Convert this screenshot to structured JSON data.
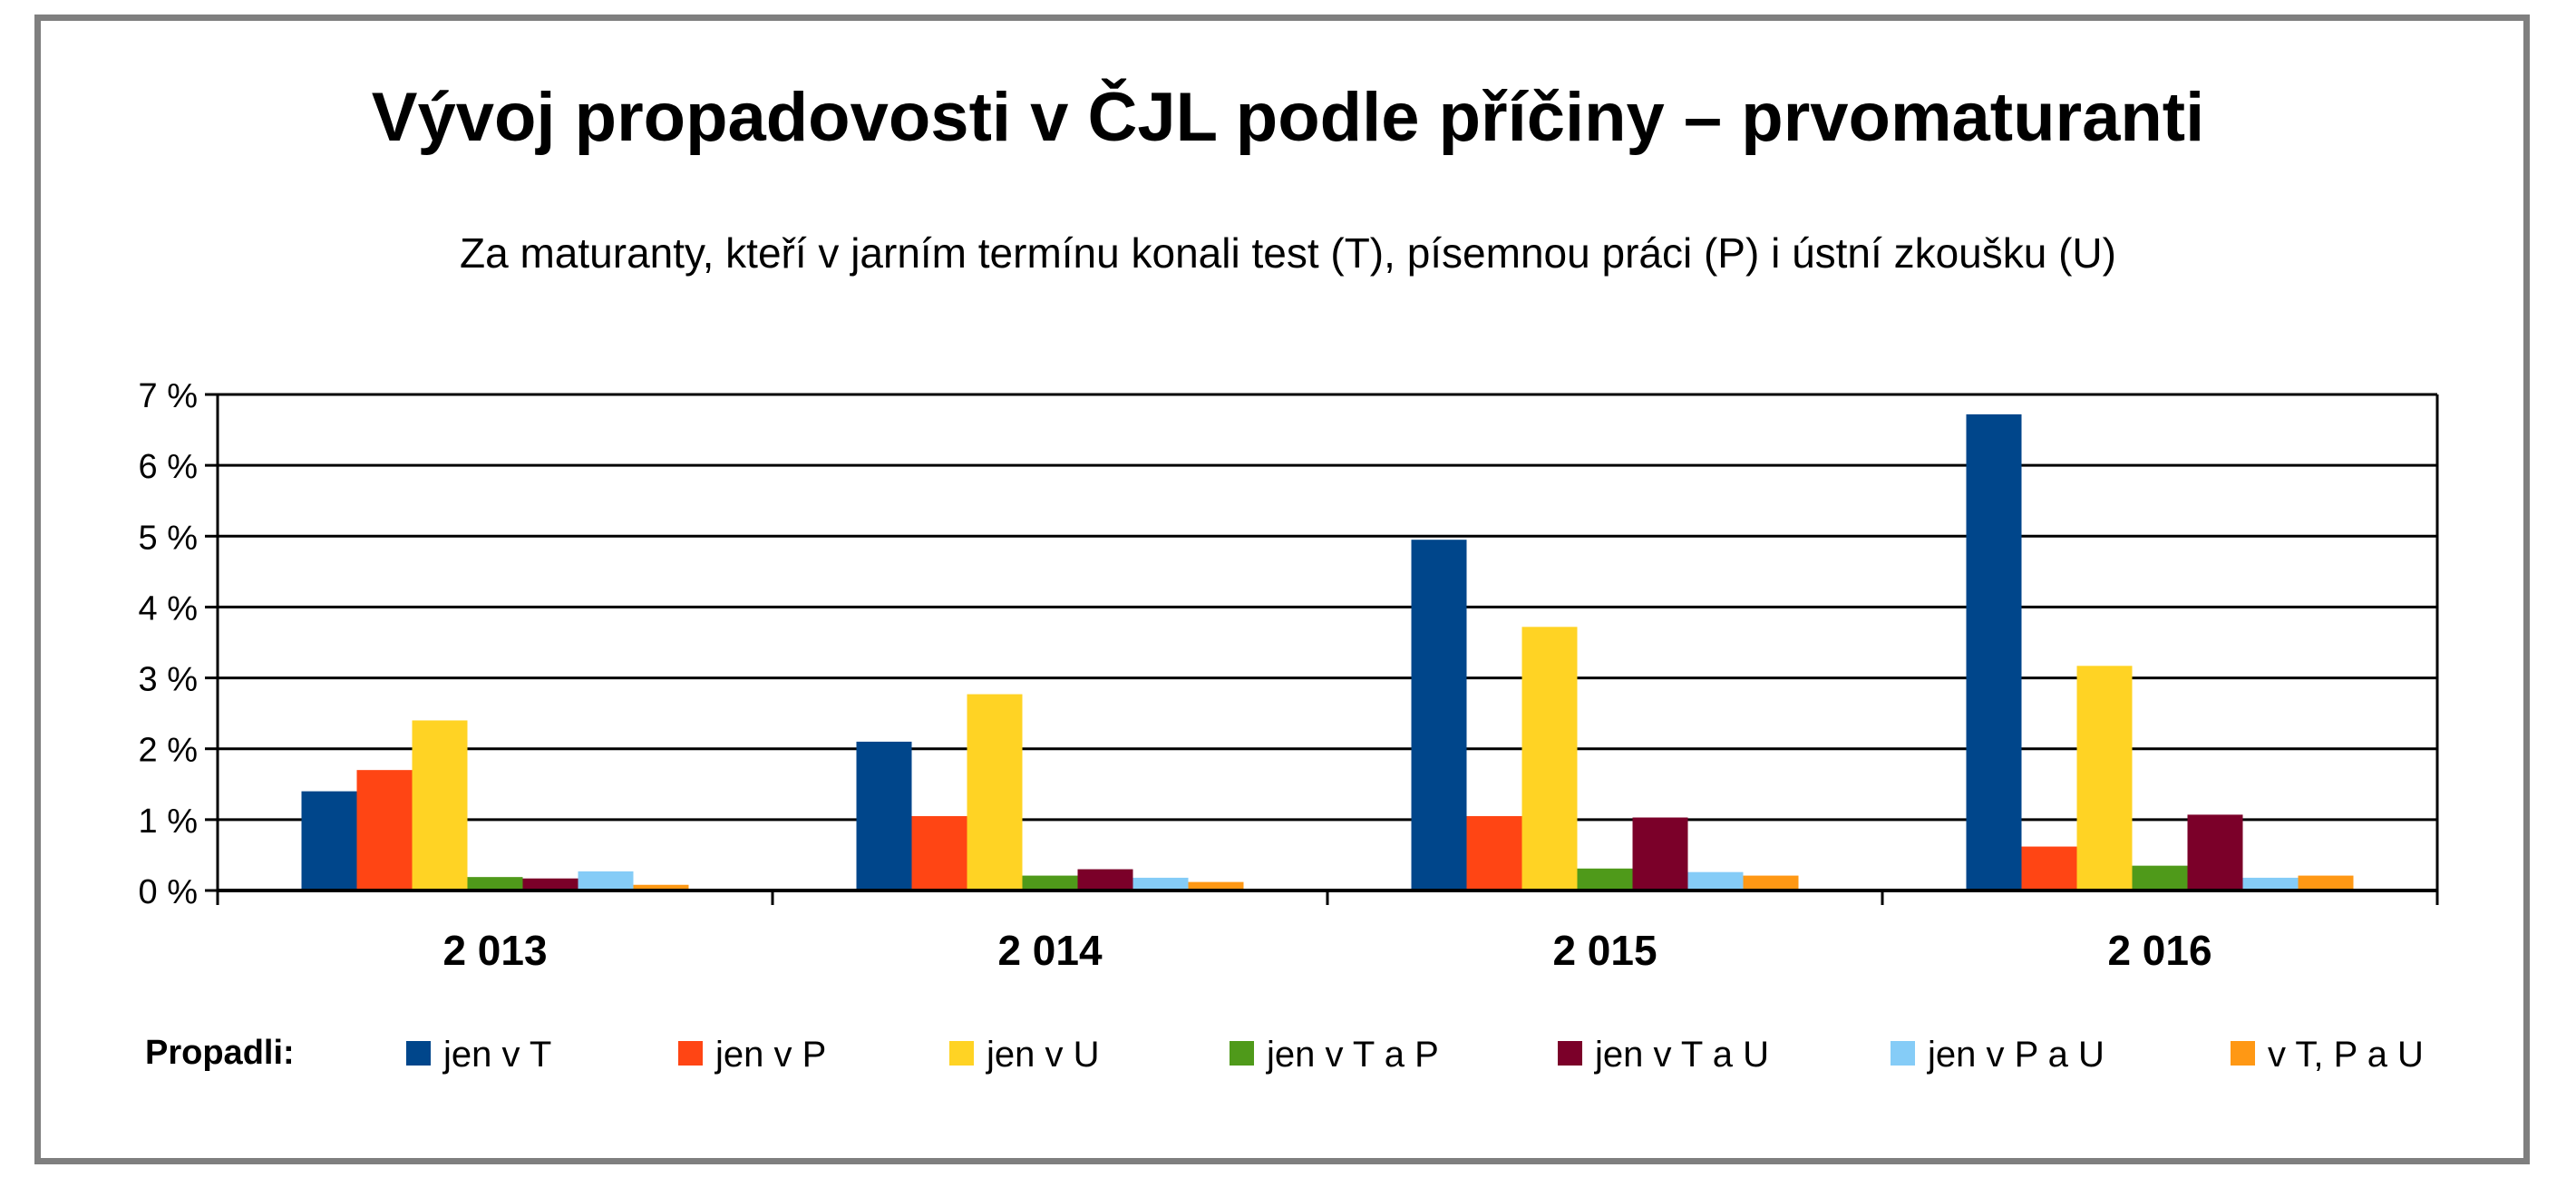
{
  "title": "Vývoj propadovosti v ČJL podle příčiny – prvomaturanti",
  "subtitle": "Za maturanty, kteří v jarním termínu konali test (T), písemnou práci (P) i ústní zkoušku (U)",
  "legend_title": "Propadli:",
  "chart_data": {
    "type": "bar",
    "categories": [
      "2 013",
      "2 014",
      "2 015",
      "2 016"
    ],
    "ylim": [
      0,
      7
    ],
    "yticks": [
      0,
      1,
      2,
      3,
      4,
      5,
      6,
      7
    ],
    "ytick_labels": [
      "0 %",
      "1 %",
      "2 %",
      "3 %",
      "4 %",
      "5 %",
      "6 %",
      "7 %"
    ],
    "grid": true,
    "legend_position": "bottom",
    "series": [
      {
        "name": "jen v T",
        "color": "#00468b",
        "values": [
          1.4,
          2.1,
          4.95,
          6.72
        ]
      },
      {
        "name": "jen v P",
        "color": "#ff4514",
        "values": [
          1.7,
          1.05,
          1.05,
          0.62
        ]
      },
      {
        "name": "jen v U",
        "color": "#ffd324",
        "values": [
          2.4,
          2.77,
          3.72,
          3.17
        ]
      },
      {
        "name": "jen v T a P",
        "color": "#4f9a1a",
        "values": [
          0.19,
          0.21,
          0.31,
          0.35
        ]
      },
      {
        "name": "jen v T a U",
        "color": "#7b0029",
        "values": [
          0.17,
          0.3,
          1.03,
          1.07
        ]
      },
      {
        "name": "jen v P a U",
        "color": "#85ccf7",
        "values": [
          0.27,
          0.18,
          0.26,
          0.18
        ]
      },
      {
        "name": "v T, P a U",
        "color": "#ff9814",
        "values": [
          0.08,
          0.12,
          0.21,
          0.21
        ]
      }
    ]
  }
}
